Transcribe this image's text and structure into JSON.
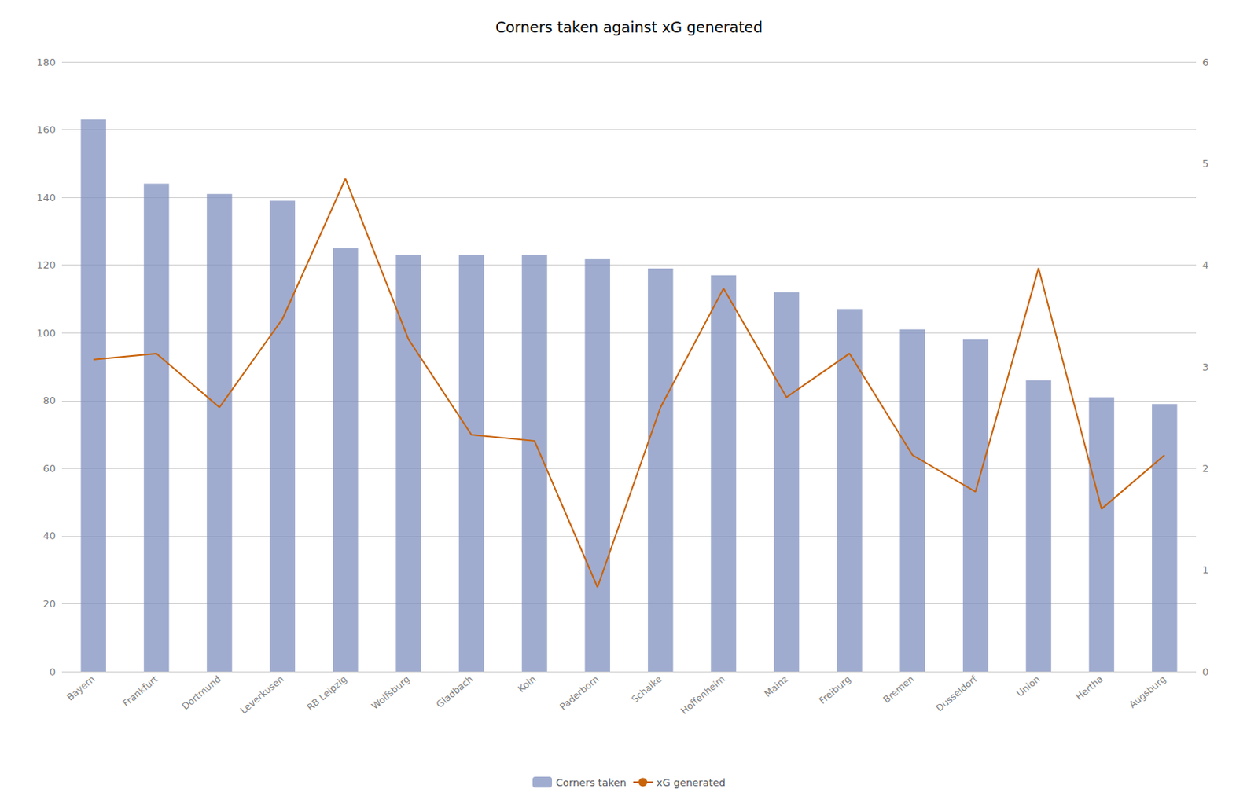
{
  "chart_data": {
    "type": "bar",
    "title": "Corners taken against xG generated",
    "categories": [
      "Bayern",
      "Frankfurt",
      "Dortmund",
      "Leverkusen",
      "RB Leipzig",
      "Wolfsburg",
      "Gladbach",
      "Koln",
      "Paderborn",
      "Schalke",
      "Hoffenheim",
      "Mainz",
      "Freiburg",
      "Bremen",
      "Dusseldorf",
      "Union",
      "Hertha",
      "Augsburg"
    ],
    "series": [
      {
        "name": "Corners taken",
        "type": "bar",
        "color": "#8090BF",
        "values": [
          163,
          144,
          141,
          139,
          125,
          123,
          123,
          123,
          122,
          119,
          117,
          112,
          107,
          101,
          98,
          86,
          81,
          79
        ]
      },
      {
        "name": "xG generated",
        "type": "line",
        "color": "#C8630A",
        "axis": "y2",
        "values": [
          3.07,
          3.13,
          2.6,
          3.47,
          4.85,
          3.27,
          2.33,
          2.27,
          0.83,
          2.6,
          3.77,
          2.7,
          3.13,
          2.13,
          1.77,
          3.97,
          1.6,
          2.13
        ]
      }
    ],
    "ylim": [
      0,
      180
    ],
    "yticks": [
      0,
      20,
      40,
      60,
      80,
      100,
      120,
      140,
      160,
      180
    ],
    "y2lim": [
      0,
      6
    ],
    "y2ticks": [
      0,
      1,
      2,
      3,
      4,
      5,
      6
    ],
    "grid": true,
    "legend": "bottom"
  }
}
